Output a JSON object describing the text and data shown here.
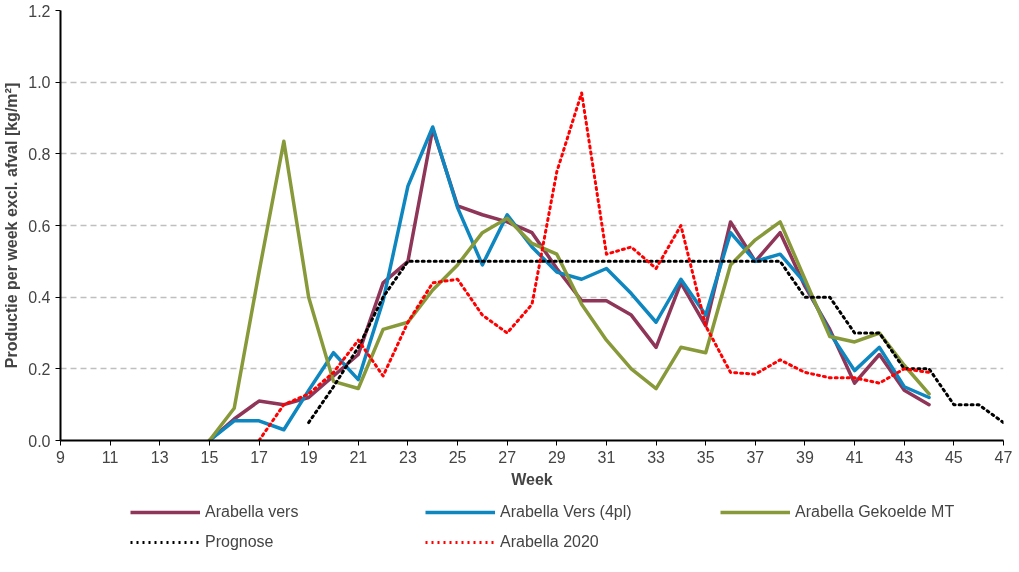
{
  "chart_data": {
    "type": "line",
    "xlabel": "Week",
    "ylabel": "Productie per week excl. afval [kg/m²]",
    "xlim": [
      9,
      47
    ],
    "xticks": [
      9,
      11,
      13,
      15,
      17,
      19,
      21,
      23,
      25,
      27,
      29,
      31,
      33,
      35,
      37,
      39,
      41,
      43,
      45,
      47
    ],
    "ylim": [
      0,
      1.2
    ],
    "yticks": [
      {
        "value": 0,
        "label": "0.0"
      },
      {
        "value": 0.2,
        "label": "0.2"
      },
      {
        "value": 0.4,
        "label": "0.4"
      },
      {
        "value": 0.6,
        "label": "0.6"
      },
      {
        "value": 0.8,
        "label": "0.8"
      },
      {
        "value": 1.0,
        "label": "1.0"
      },
      {
        "value": 1.2,
        "label": "1.2"
      }
    ],
    "grid": "y",
    "legend": "bottom",
    "marker": "none",
    "series": [
      {
        "name": "Arabella vers",
        "color": "#8e3558",
        "line_style": "solid",
        "x": [
          15,
          16,
          17,
          18,
          19,
          20,
          21,
          22,
          23,
          24,
          25,
          26,
          27,
          28,
          29,
          30,
          31,
          32,
          33,
          34,
          35,
          36,
          37,
          38,
          39,
          40,
          41,
          42,
          43,
          44
        ],
        "values": [
          0,
          0.06,
          0.11,
          0.1,
          0.12,
          0.18,
          0.24,
          0.44,
          0.5,
          0.87,
          0.655,
          0.63,
          0.61,
          0.58,
          0.48,
          0.39,
          0.39,
          0.35,
          0.26,
          0.44,
          0.32,
          0.61,
          0.5,
          0.58,
          0.43,
          0.31,
          0.16,
          0.24,
          0.14,
          0.1
        ]
      },
      {
        "name": "Arabella Vers (4pl)",
        "color": "#0e86c0",
        "line_style": "solid",
        "x": [
          15,
          16,
          17,
          18,
          19,
          20,
          21,
          22,
          23,
          24,
          25,
          26,
          27,
          28,
          29,
          30,
          31,
          32,
          33,
          34,
          35,
          36,
          37,
          38,
          39,
          40,
          41,
          42,
          43,
          44
        ],
        "values": [
          0,
          0.055,
          0.055,
          0.03,
          0.14,
          0.245,
          0.17,
          0.39,
          0.71,
          0.875,
          0.65,
          0.49,
          0.63,
          0.54,
          0.47,
          0.45,
          0.48,
          0.41,
          0.33,
          0.45,
          0.35,
          0.58,
          0.5,
          0.52,
          0.44,
          0.3,
          0.195,
          0.26,
          0.15,
          0.12
        ]
      },
      {
        "name": "Arabella Gekoelde MT",
        "color": "#88993a",
        "line_style": "solid",
        "x": [
          15,
          16,
          17,
          18,
          19,
          20,
          21,
          22,
          23,
          24,
          25,
          26,
          27,
          28,
          29,
          30,
          31,
          32,
          33,
          34,
          35,
          36,
          37,
          38,
          39,
          40,
          41,
          42,
          43,
          44
        ],
        "values": [
          0,
          0.09,
          0.47,
          0.835,
          0.4,
          0.165,
          0.145,
          0.31,
          0.33,
          0.42,
          0.49,
          0.58,
          0.62,
          0.55,
          0.52,
          0.38,
          0.28,
          0.2,
          0.145,
          0.26,
          0.245,
          0.49,
          0.56,
          0.61,
          0.45,
          0.29,
          0.275,
          0.3,
          0.21,
          0.13
        ]
      },
      {
        "name": "Prognose",
        "color": "#000000",
        "line_style": "dotted",
        "x": [
          19,
          20,
          21,
          22,
          23,
          24,
          25,
          26,
          27,
          28,
          29,
          30,
          31,
          32,
          33,
          34,
          35,
          36,
          37,
          38,
          39,
          40,
          41,
          42,
          43,
          44,
          45,
          46,
          47
        ],
        "values": [
          0.05,
          0.15,
          0.26,
          0.4,
          0.5,
          0.5,
          0.5,
          0.5,
          0.5,
          0.5,
          0.5,
          0.5,
          0.5,
          0.5,
          0.5,
          0.5,
          0.5,
          0.5,
          0.5,
          0.5,
          0.4,
          0.4,
          0.3,
          0.3,
          0.2,
          0.2,
          0.1,
          0.1,
          0.05
        ]
      },
      {
        "name": "Arabella 2020",
        "color": "#ff0000",
        "line_style": "dotted",
        "x": [
          17,
          18,
          19,
          20,
          21,
          22,
          23,
          24,
          25,
          26,
          27,
          28,
          29,
          30,
          31,
          32,
          33,
          34,
          35,
          36,
          37,
          38,
          39,
          40,
          41,
          42,
          43,
          44
        ],
        "values": [
          0,
          0.1,
          0.13,
          0.19,
          0.28,
          0.18,
          0.33,
          0.44,
          0.45,
          0.35,
          0.3,
          0.38,
          0.75,
          0.97,
          0.52,
          0.54,
          0.48,
          0.6,
          0.32,
          0.19,
          0.185,
          0.225,
          0.19,
          0.175,
          0.175,
          0.16,
          0.2,
          0.19
        ]
      }
    ]
  }
}
